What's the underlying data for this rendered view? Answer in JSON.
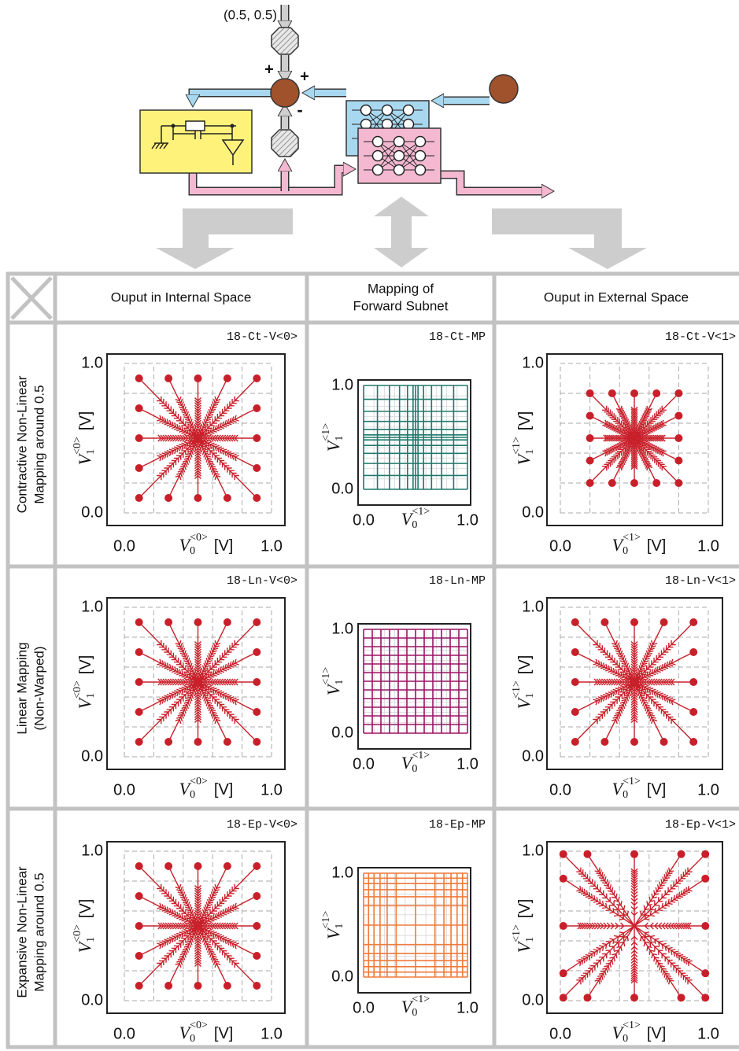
{
  "diagram": {
    "input": "(0.5, 0.5)",
    "signs": [
      "+",
      "+",
      "-"
    ]
  },
  "table": {
    "headers": [
      [
        "Ouput in Internal Space"
      ],
      [
        "Mapping of",
        "Forward Subnet"
      ],
      [
        "Ouput in External Space"
      ]
    ],
    "rows": [
      {
        "label": [
          "Contractive Non-Linear",
          "Mapping around 0.5"
        ],
        "plots": [
          {
            "id": "18-Ct-V<0>",
            "xticks": [
              "0.0",
              "1.0"
            ],
            "yticks": [
              "0.0",
              "1.0"
            ],
            "x_label": {
              "symbol": "V",
              "sub": "0",
              "sup": "<0>",
              "unit": "[V]"
            },
            "y_label": {
              "symbol": "V",
              "sub": "1",
              "sup": "<0>",
              "unit": "[V]"
            }
          },
          {
            "id": "18-Ct-MP",
            "xticks": [
              "0.0",
              "1.0"
            ],
            "yticks": [
              "0.0",
              "1.0"
            ],
            "x_label": {
              "symbol": "V",
              "sub": "0",
              "sup": "<1>"
            },
            "y_label": {
              "symbol": "V",
              "sub": "1",
              "sup": "<1>"
            }
          },
          {
            "id": "18-Ct-V<1>",
            "xticks": [
              "0.0",
              "1.0"
            ],
            "yticks": [
              "0.0",
              "1.0"
            ],
            "x_label": {
              "symbol": "V",
              "sub": "0",
              "sup": "<1>",
              "unit": "[V]"
            },
            "y_label": {
              "symbol": "V",
              "sub": "1",
              "sup": "<1>",
              "unit": "[V]"
            }
          }
        ]
      },
      {
        "label": [
          "Linear Mapping",
          "(Non-Warped)"
        ],
        "plots": [
          {
            "id": "18-Ln-V<0>",
            "xticks": [
              "0.0",
              "1.0"
            ],
            "yticks": [
              "0.0",
              "1.0"
            ],
            "x_label": {
              "symbol": "V",
              "sub": "0",
              "sup": "<0>",
              "unit": "[V]"
            },
            "y_label": {
              "symbol": "V",
              "sub": "1",
              "sup": "<0>",
              "unit": "[V]"
            }
          },
          {
            "id": "18-Ln-MP",
            "xticks": [
              "0.0",
              "1.0"
            ],
            "yticks": [
              "0.0",
              "1.0"
            ],
            "x_label": {
              "symbol": "V",
              "sub": "0",
              "sup": "<1>"
            },
            "y_label": {
              "symbol": "V",
              "sub": "1",
              "sup": "<1>"
            }
          },
          {
            "id": "18-Ln-V<1>",
            "xticks": [
              "0.0",
              "1.0"
            ],
            "yticks": [
              "0.0",
              "1.0"
            ],
            "x_label": {
              "symbol": "V",
              "sub": "0",
              "sup": "<1>",
              "unit": "[V]"
            },
            "y_label": {
              "symbol": "V",
              "sub": "1",
              "sup": "<1>",
              "unit": "[V]"
            }
          }
        ]
      },
      {
        "label": [
          "Expansive Non-Linear",
          "Mapping around 0.5"
        ],
        "plots": [
          {
            "id": "18-Ep-V<0>",
            "xticks": [
              "0.0",
              "1.0"
            ],
            "yticks": [
              "0.0",
              "1.0"
            ],
            "x_label": {
              "symbol": "V",
              "sub": "0",
              "sup": "<0>",
              "unit": "[V]"
            },
            "y_label": {
              "symbol": "V",
              "sub": "1",
              "sup": "<0>",
              "unit": "[V]"
            }
          },
          {
            "id": "18-Ep-MP",
            "xticks": [
              "0.0",
              "1.0"
            ],
            "yticks": [
              "0.0",
              "1.0"
            ],
            "x_label": {
              "symbol": "V",
              "sub": "0",
              "sup": "<1>"
            },
            "y_label": {
              "symbol": "V",
              "sub": "1",
              "sup": "<1>"
            }
          },
          {
            "id": "18-Ep-V<1>",
            "xticks": [
              "0.0",
              "1.0"
            ],
            "yticks": [
              "0.0",
              "1.0"
            ],
            "x_label": {
              "symbol": "V",
              "sub": "0",
              "sup": "<1>",
              "unit": "[V]"
            },
            "y_label": {
              "symbol": "V",
              "sub": "1",
              "sup": "<1>",
              "unit": "[V]"
            }
          }
        ]
      }
    ]
  }
}
